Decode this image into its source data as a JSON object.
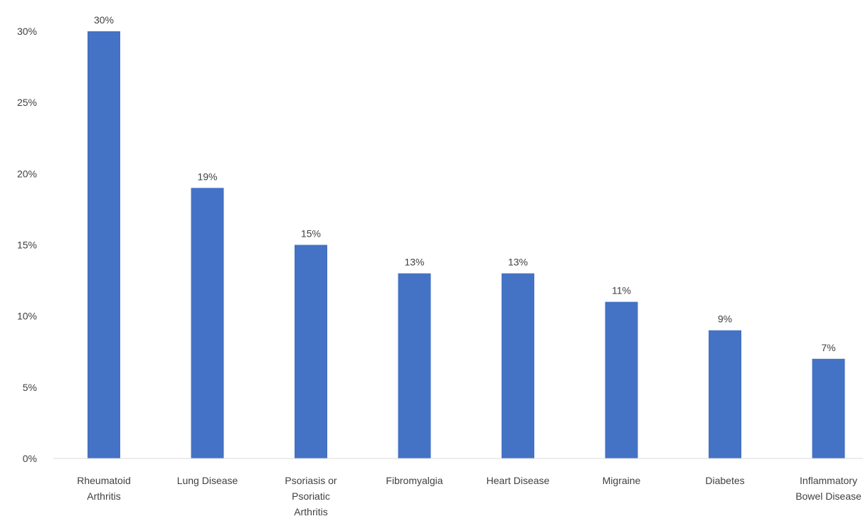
{
  "chart_data": {
    "type": "bar",
    "title": "",
    "xlabel": "",
    "ylabel": "",
    "categories": [
      [
        "Rheumatoid",
        "Arthritis"
      ],
      [
        "Lung Disease"
      ],
      [
        "Psoriasis or",
        "Psoriatic",
        "Arthritis"
      ],
      [
        "Fibromyalgia"
      ],
      [
        "Heart Disease"
      ],
      [
        "Migraine"
      ],
      [
        "Diabetes"
      ],
      [
        "Inflammatory",
        "Bowel Disease"
      ]
    ],
    "values": [
      30,
      19,
      15,
      13,
      13,
      11,
      9,
      7
    ],
    "data_labels": [
      "30%",
      "19%",
      "15%",
      "13%",
      "13%",
      "11%",
      "9%",
      "7%"
    ],
    "ylim": [
      0,
      30
    ],
    "yticks": [
      0,
      5,
      10,
      15,
      20,
      25,
      30
    ],
    "ytick_labels": [
      "0%",
      "5%",
      "10%",
      "15%",
      "20%",
      "25%",
      "30%"
    ],
    "grid": false,
    "legend": "none",
    "bar_color": "#4472C4",
    "axis_color": "#D9D9D9",
    "text_color": "#404040"
  }
}
